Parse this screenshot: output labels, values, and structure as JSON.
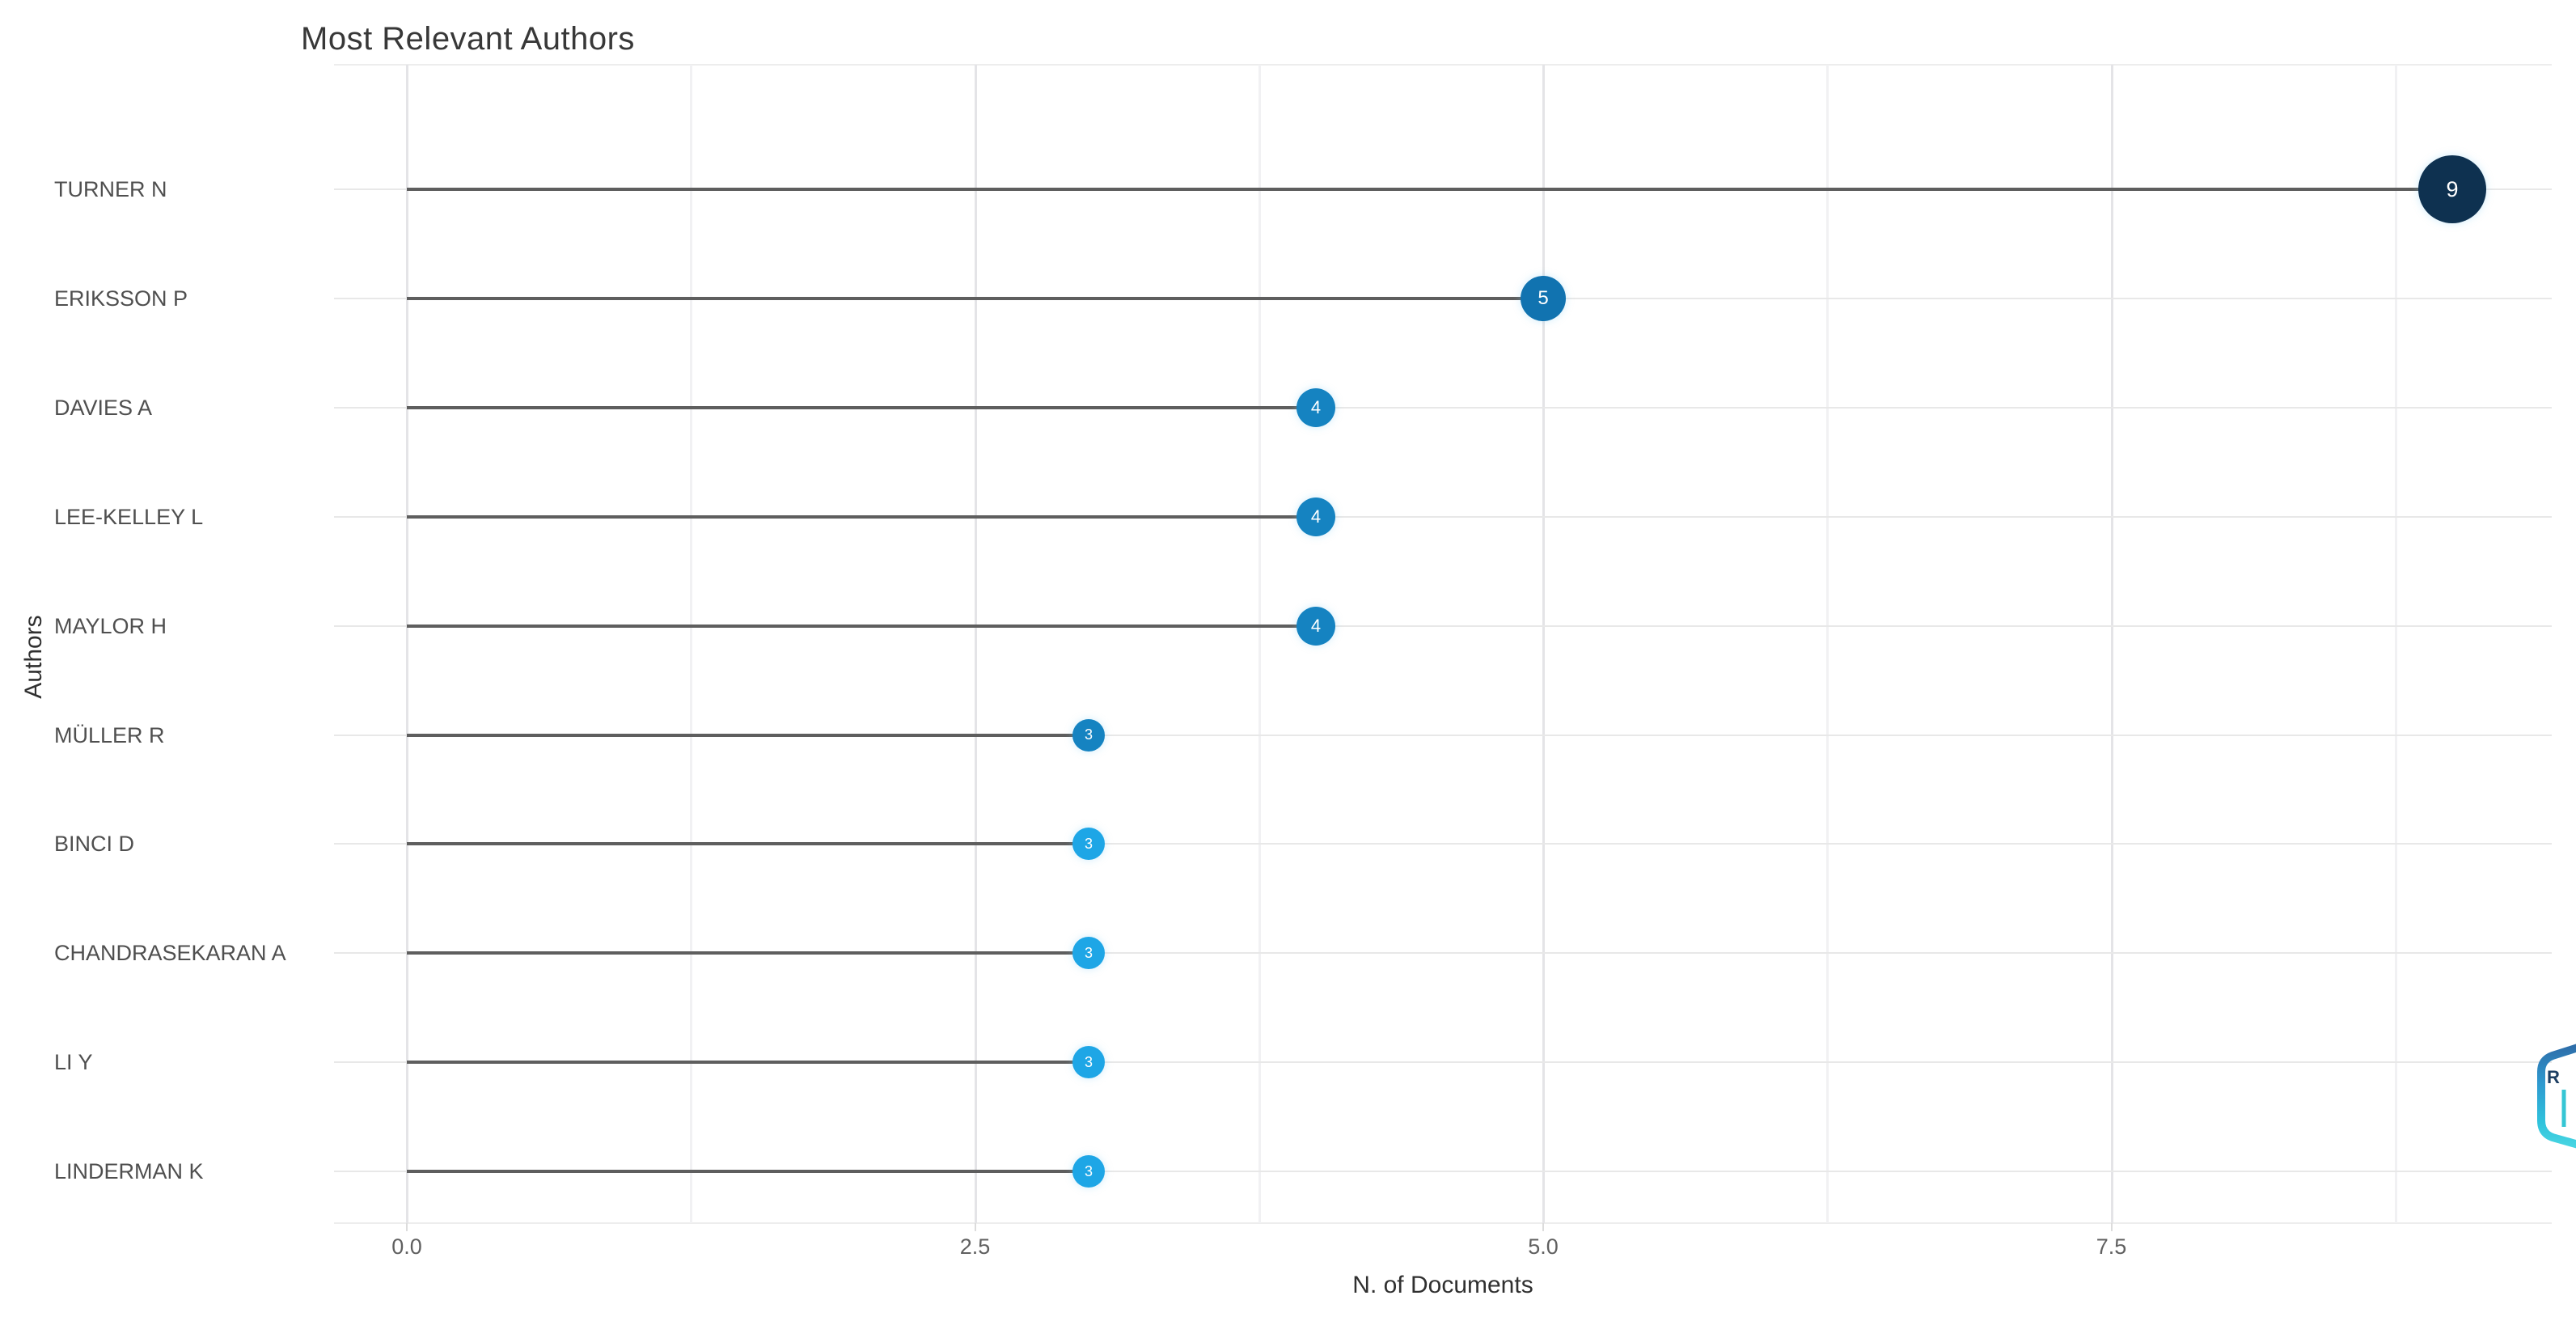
{
  "chart_data": {
    "type": "scatter",
    "variant": "horizontal-lollipop",
    "title": "Most Relevant Authors",
    "xlabel": "N. of Documents",
    "ylabel": "Authors",
    "categories": [
      "TURNER N",
      "ERIKSSON P",
      "DAVIES A",
      "LEE-KELLEY L",
      "MAYLOR H",
      "MÜLLER R",
      "BINCI D",
      "CHANDRASEKARAN A",
      "LI Y",
      "LINDERMAN K"
    ],
    "values": [
      9,
      5,
      4,
      4,
      4,
      3,
      3,
      3,
      3,
      3
    ],
    "point_labels": [
      "9",
      "5",
      "4",
      "4",
      "4",
      "3",
      "3",
      "3",
      "3",
      "3"
    ],
    "point_colors": [
      "#0e3150",
      "#1173b0",
      "#1583c1",
      "#1583c1",
      "#1583c1",
      "#1583c1",
      "#1ea6e6",
      "#1ea6e6",
      "#1ea6e6",
      "#1ea6e6"
    ],
    "x_ticks": [
      0,
      2.5,
      5,
      7.5
    ],
    "x_tick_labels": [
      "0.0",
      "2.5",
      "5.0",
      "7.5"
    ],
    "x_minor_gridlines": [
      1.25,
      3.75,
      6.25,
      8.75
    ],
    "xlim": [
      -0.32,
      9.45
    ],
    "grid": true,
    "legend_position": "none",
    "orientation": "horizontal"
  },
  "colors": {
    "background": "#ffffff",
    "stem": "#5e5e5e",
    "grid_major": "#e4e4e7",
    "grid_minor": "#f1f1f3",
    "row_line": "#e8e8e8",
    "tick_text": "#606060",
    "category_text": "#4f4f4f",
    "axis_title_text": "#303030",
    "chart_title_text": "#383838",
    "dot_label_text": "#ffffff"
  },
  "icons": {
    "clipped_logo": "clipped-widget-logo"
  }
}
